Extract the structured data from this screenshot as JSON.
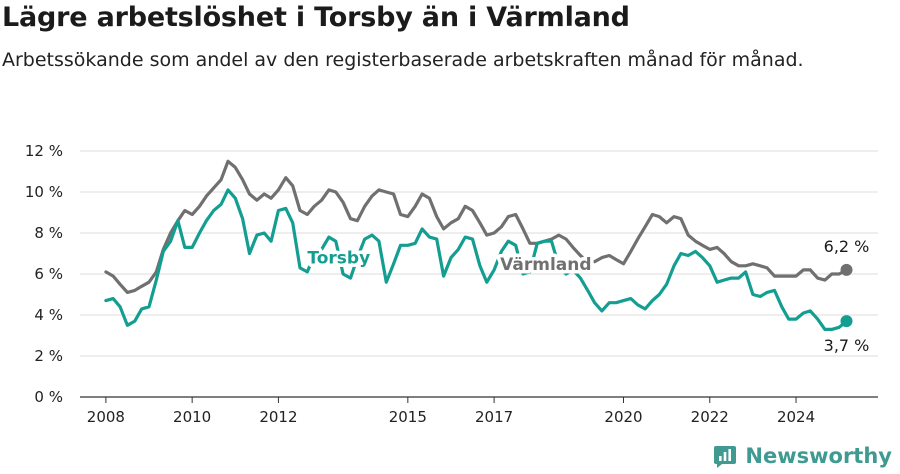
{
  "header": {
    "title": "Lägre arbetslöshet i Torsby än i Värmland",
    "subtitle": "Arbetssökande som andel av den registerbaserade arbetskraften månad för månad."
  },
  "brand": {
    "name": "Newsworthy",
    "icon": "newsworthy-logo-icon",
    "color": "#3f9a92"
  },
  "chart_data": {
    "type": "line",
    "title": "Lägre arbetslöshet i Torsby än i Värmland",
    "subtitle": "Arbetssökande som andel av den registerbaserade arbetskraften månad för månad.",
    "xlim": [
      2007.4,
      2025.9
    ],
    "ylim": [
      0,
      12
    ],
    "x_ticks": [
      2008,
      2010,
      2012,
      2015,
      2017,
      2020,
      2022,
      2024
    ],
    "x_tick_labels": [
      "2008",
      "2010",
      "2012",
      "2015",
      "2017",
      "2020",
      "2022",
      "2024"
    ],
    "y_ticks": [
      0,
      2,
      4,
      6,
      8,
      10,
      12
    ],
    "y_tick_labels": [
      "0 %",
      "2 %",
      "4 %",
      "6 %",
      "8 %",
      "10 %",
      "12 %"
    ],
    "grid": "horizontal",
    "series": [
      {
        "name": "Värmland",
        "color": "#707070",
        "end_label": "6,2 %",
        "points": [
          [
            2008.0,
            6.1
          ],
          [
            2008.17,
            5.9
          ],
          [
            2008.33,
            5.5
          ],
          [
            2008.5,
            5.1
          ],
          [
            2008.67,
            5.2
          ],
          [
            2008.83,
            5.4
          ],
          [
            2009.0,
            5.6
          ],
          [
            2009.17,
            6.1
          ],
          [
            2009.33,
            7.2
          ],
          [
            2009.5,
            8.0
          ],
          [
            2009.67,
            8.6
          ],
          [
            2009.83,
            9.1
          ],
          [
            2010.0,
            8.9
          ],
          [
            2010.17,
            9.3
          ],
          [
            2010.33,
            9.8
          ],
          [
            2010.5,
            10.2
          ],
          [
            2010.67,
            10.6
          ],
          [
            2010.83,
            11.5
          ],
          [
            2011.0,
            11.2
          ],
          [
            2011.17,
            10.6
          ],
          [
            2011.33,
            9.9
          ],
          [
            2011.5,
            9.6
          ],
          [
            2011.67,
            9.9
          ],
          [
            2011.83,
            9.7
          ],
          [
            2012.0,
            10.1
          ],
          [
            2012.17,
            10.7
          ],
          [
            2012.33,
            10.3
          ],
          [
            2012.5,
            9.1
          ],
          [
            2012.67,
            8.9
          ],
          [
            2012.83,
            9.3
          ],
          [
            2013.0,
            9.6
          ],
          [
            2013.17,
            10.1
          ],
          [
            2013.33,
            10.0
          ],
          [
            2013.5,
            9.5
          ],
          [
            2013.67,
            8.7
          ],
          [
            2013.83,
            8.6
          ],
          [
            2014.0,
            9.3
          ],
          [
            2014.17,
            9.8
          ],
          [
            2014.33,
            10.1
          ],
          [
            2014.5,
            10.0
          ],
          [
            2014.67,
            9.9
          ],
          [
            2014.83,
            8.9
          ],
          [
            2015.0,
            8.8
          ],
          [
            2015.17,
            9.3
          ],
          [
            2015.33,
            9.9
          ],
          [
            2015.5,
            9.7
          ],
          [
            2015.67,
            8.8
          ],
          [
            2015.83,
            8.2
          ],
          [
            2016.0,
            8.5
          ],
          [
            2016.17,
            8.7
          ],
          [
            2016.33,
            9.3
          ],
          [
            2016.5,
            9.1
          ],
          [
            2016.67,
            8.5
          ],
          [
            2016.83,
            7.9
          ],
          [
            2017.0,
            8.0
          ],
          [
            2017.17,
            8.3
          ],
          [
            2017.33,
            8.8
          ],
          [
            2017.5,
            8.9
          ],
          [
            2017.67,
            8.2
          ],
          [
            2017.83,
            7.5
          ],
          [
            2018.0,
            7.5
          ],
          [
            2018.17,
            7.6
          ],
          [
            2018.33,
            7.7
          ],
          [
            2018.5,
            7.9
          ],
          [
            2018.67,
            7.7
          ],
          [
            2018.83,
            7.3
          ],
          [
            2019.0,
            6.9
          ],
          [
            2019.17,
            6.6
          ],
          [
            2019.33,
            6.6
          ],
          [
            2019.5,
            6.8
          ],
          [
            2019.67,
            6.9
          ],
          [
            2019.83,
            6.7
          ],
          [
            2020.0,
            6.5
          ],
          [
            2020.17,
            7.1
          ],
          [
            2020.33,
            7.7
          ],
          [
            2020.5,
            8.3
          ],
          [
            2020.67,
            8.9
          ],
          [
            2020.83,
            8.8
          ],
          [
            2021.0,
            8.5
          ],
          [
            2021.17,
            8.8
          ],
          [
            2021.33,
            8.7
          ],
          [
            2021.5,
            7.9
          ],
          [
            2021.67,
            7.6
          ],
          [
            2021.83,
            7.4
          ],
          [
            2022.0,
            7.2
          ],
          [
            2022.17,
            7.3
          ],
          [
            2022.33,
            7.0
          ],
          [
            2022.5,
            6.6
          ],
          [
            2022.67,
            6.4
          ],
          [
            2022.83,
            6.4
          ],
          [
            2023.0,
            6.5
          ],
          [
            2023.17,
            6.4
          ],
          [
            2023.33,
            6.3
          ],
          [
            2023.5,
            5.9
          ],
          [
            2023.67,
            5.9
          ],
          [
            2023.83,
            5.9
          ],
          [
            2024.0,
            5.9
          ],
          [
            2024.17,
            6.2
          ],
          [
            2024.33,
            6.2
          ],
          [
            2024.5,
            5.8
          ],
          [
            2024.67,
            5.7
          ],
          [
            2024.83,
            6.0
          ],
          [
            2025.0,
            6.0
          ],
          [
            2025.17,
            6.2
          ]
        ]
      },
      {
        "name": "Torsby",
        "color": "#149e92",
        "end_label": "3,7 %",
        "points": [
          [
            2008.0,
            4.7
          ],
          [
            2008.17,
            4.8
          ],
          [
            2008.33,
            4.4
          ],
          [
            2008.5,
            3.5
          ],
          [
            2008.67,
            3.7
          ],
          [
            2008.83,
            4.3
          ],
          [
            2009.0,
            4.4
          ],
          [
            2009.17,
            5.7
          ],
          [
            2009.33,
            7.1
          ],
          [
            2009.5,
            7.6
          ],
          [
            2009.67,
            8.6
          ],
          [
            2009.83,
            7.3
          ],
          [
            2010.0,
            7.3
          ],
          [
            2010.17,
            8.0
          ],
          [
            2010.33,
            8.6
          ],
          [
            2010.5,
            9.1
          ],
          [
            2010.67,
            9.4
          ],
          [
            2010.83,
            10.1
          ],
          [
            2011.0,
            9.7
          ],
          [
            2011.17,
            8.7
          ],
          [
            2011.33,
            7.0
          ],
          [
            2011.5,
            7.9
          ],
          [
            2011.67,
            8.0
          ],
          [
            2011.83,
            7.6
          ],
          [
            2012.0,
            9.1
          ],
          [
            2012.17,
            9.2
          ],
          [
            2012.33,
            8.5
          ],
          [
            2012.5,
            6.3
          ],
          [
            2012.67,
            6.1
          ],
          [
            2012.83,
            6.9
          ],
          [
            2013.0,
            7.2
          ],
          [
            2013.17,
            7.8
          ],
          [
            2013.33,
            7.6
          ],
          [
            2013.5,
            6.0
          ],
          [
            2013.67,
            5.8
          ],
          [
            2013.83,
            6.8
          ],
          [
            2014.0,
            7.7
          ],
          [
            2014.17,
            7.9
          ],
          [
            2014.33,
            7.6
          ],
          [
            2014.5,
            5.6
          ],
          [
            2014.67,
            6.5
          ],
          [
            2014.83,
            7.4
          ],
          [
            2015.0,
            7.4
          ],
          [
            2015.17,
            7.5
          ],
          [
            2015.33,
            8.2
          ],
          [
            2015.5,
            7.8
          ],
          [
            2015.67,
            7.7
          ],
          [
            2015.83,
            5.9
          ],
          [
            2016.0,
            6.8
          ],
          [
            2016.17,
            7.2
          ],
          [
            2016.33,
            7.8
          ],
          [
            2016.5,
            7.7
          ],
          [
            2016.67,
            6.4
          ],
          [
            2016.83,
            5.6
          ],
          [
            2017.0,
            6.2
          ],
          [
            2017.17,
            7.1
          ],
          [
            2017.33,
            7.6
          ],
          [
            2017.5,
            7.4
          ],
          [
            2017.67,
            6.0
          ],
          [
            2017.83,
            6.1
          ],
          [
            2018.0,
            7.5
          ],
          [
            2018.17,
            7.6
          ],
          [
            2018.33,
            7.6
          ],
          [
            2018.5,
            6.4
          ],
          [
            2018.67,
            6.0
          ],
          [
            2018.83,
            6.2
          ],
          [
            2019.0,
            5.8
          ],
          [
            2019.17,
            5.2
          ],
          [
            2019.33,
            4.6
          ],
          [
            2019.5,
            4.2
          ],
          [
            2019.67,
            4.6
          ],
          [
            2019.83,
            4.6
          ],
          [
            2020.0,
            4.7
          ],
          [
            2020.17,
            4.8
          ],
          [
            2020.33,
            4.5
          ],
          [
            2020.5,
            4.3
          ],
          [
            2020.67,
            4.7
          ],
          [
            2020.83,
            5.0
          ],
          [
            2021.0,
            5.5
          ],
          [
            2021.17,
            6.4
          ],
          [
            2021.33,
            7.0
          ],
          [
            2021.5,
            6.9
          ],
          [
            2021.67,
            7.1
          ],
          [
            2021.83,
            6.8
          ],
          [
            2022.0,
            6.4
          ],
          [
            2022.17,
            5.6
          ],
          [
            2022.33,
            5.7
          ],
          [
            2022.5,
            5.8
          ],
          [
            2022.67,
            5.8
          ],
          [
            2022.83,
            6.1
          ],
          [
            2023.0,
            5.0
          ],
          [
            2023.17,
            4.9
          ],
          [
            2023.33,
            5.1
          ],
          [
            2023.5,
            5.2
          ],
          [
            2023.67,
            4.4
          ],
          [
            2023.83,
            3.8
          ],
          [
            2024.0,
            3.8
          ],
          [
            2024.17,
            4.1
          ],
          [
            2024.33,
            4.2
          ],
          [
            2024.5,
            3.8
          ],
          [
            2024.67,
            3.3
          ],
          [
            2024.83,
            3.3
          ],
          [
            2025.0,
            3.4
          ],
          [
            2025.17,
            3.7
          ]
        ]
      }
    ],
    "series_labels": [
      {
        "series": "Torsby",
        "text": "Torsby",
        "x": 2013.4,
        "y": 6.8,
        "color": "#149e92"
      },
      {
        "series": "Värmland",
        "text": "Värmland",
        "x": 2018.2,
        "y": 6.5,
        "color": "#707070"
      }
    ]
  }
}
